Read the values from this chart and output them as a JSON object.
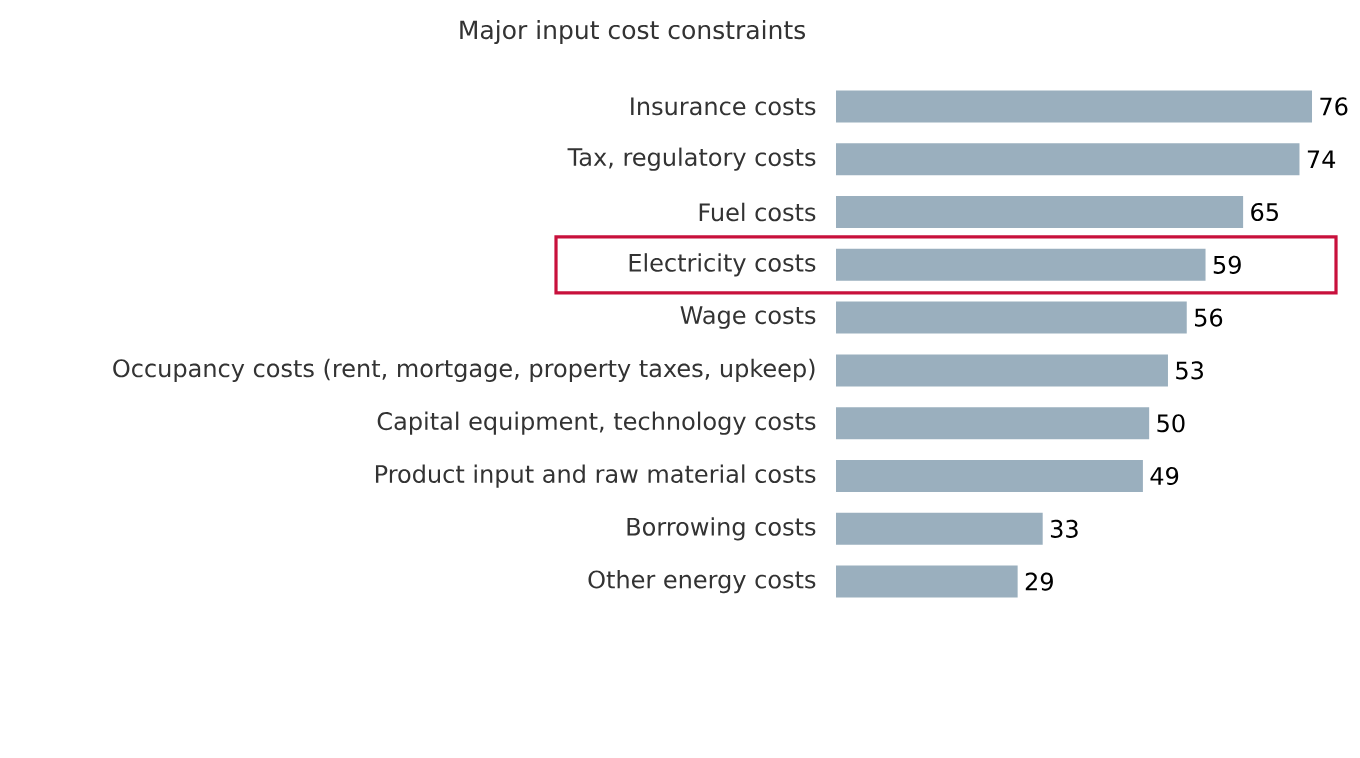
{
  "chart_data": {
    "type": "bar",
    "orientation": "horizontal",
    "title": "Major input cost constraints",
    "categories": [
      "Insurance costs",
      "Tax, regulatory costs",
      "Fuel costs",
      "Electricity costs",
      "Wage costs",
      "Occupancy costs (rent, mortgage, property taxes, upkeep)",
      "Capital equipment, technology costs",
      "Product input and raw material costs",
      "Borrowing costs",
      "Other energy costs"
    ],
    "values": [
      76,
      74,
      65,
      59,
      56,
      53,
      50,
      49,
      33,
      29
    ],
    "color": "#9aafbe",
    "data_labels": true,
    "tick_labels": "y"
  }
}
